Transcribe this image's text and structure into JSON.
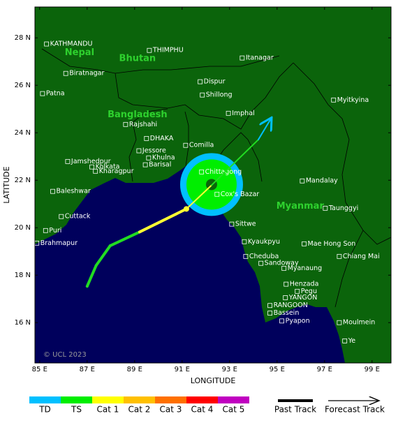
{
  "map": {
    "xlim": [
      84.8,
      99.8
    ],
    "ylim": [
      14.3,
      29.3
    ],
    "xticks": [
      {
        "value": 85,
        "label": "85 E"
      },
      {
        "value": 87,
        "label": "87 E"
      },
      {
        "value": 89,
        "label": "89 E"
      },
      {
        "value": 91,
        "label": "91 E"
      },
      {
        "value": 93,
        "label": "93 E"
      },
      {
        "value": 95,
        "label": "95 E"
      },
      {
        "value": 97,
        "label": "97 E"
      },
      {
        "value": 99,
        "label": "99 E"
      }
    ],
    "yticks": [
      {
        "value": 16,
        "label": "16 N"
      },
      {
        "value": 18,
        "label": "18 N"
      },
      {
        "value": 20,
        "label": "20 N"
      },
      {
        "value": 22,
        "label": "22 N"
      },
      {
        "value": 24,
        "label": "24 N"
      },
      {
        "value": 26,
        "label": "26 N"
      },
      {
        "value": 28,
        "label": "28 N"
      }
    ],
    "xlabel": "LONGITUDE",
    "ylabel": "LATITUDE",
    "copyright": "© UCL 2023",
    "regions": [
      {
        "name": "Nepal",
        "lon": 86.68,
        "lat": 27.38
      },
      {
        "name": "Bhutan",
        "lon": 89.12,
        "lat": 27.12
      },
      {
        "name": "Bangladesh",
        "lon": 89.12,
        "lat": 24.76
      },
      {
        "name": "Myanmar",
        "lon": 95.97,
        "lat": 20.91
      }
    ],
    "cities": [
      {
        "name": "KATHMANDU",
        "lon": 85.29,
        "lat": 27.74
      },
      {
        "name": "THIMPHU",
        "lon": 89.62,
        "lat": 27.47
      },
      {
        "name": "Itanagar",
        "lon": 93.53,
        "lat": 27.15
      },
      {
        "name": "Biratnagar",
        "lon": 86.1,
        "lat": 26.5
      },
      {
        "name": "Dispur",
        "lon": 91.76,
        "lat": 26.15
      },
      {
        "name": "Patna",
        "lon": 85.12,
        "lat": 25.65
      },
      {
        "name": "Shillong",
        "lon": 91.85,
        "lat": 25.59
      },
      {
        "name": "Myitkyina",
        "lon": 97.38,
        "lat": 25.38
      },
      {
        "name": "Imphal",
        "lon": 92.95,
        "lat": 24.82
      },
      {
        "name": "Rajshahi",
        "lon": 88.62,
        "lat": 24.35
      },
      {
        "name": "DHAKA",
        "lon": 89.5,
        "lat": 23.76
      },
      {
        "name": "Comilla",
        "lon": 91.15,
        "lat": 23.47
      },
      {
        "name": "Jessore",
        "lon": 89.18,
        "lat": 23.24
      },
      {
        "name": "Jamshedpur",
        "lon": 86.18,
        "lat": 22.79
      },
      {
        "name": "Khulna",
        "lon": 89.59,
        "lat": 22.94
      },
      {
        "name": "Kolkata",
        "lon": 87.2,
        "lat": 22.56
      },
      {
        "name": "Barisal",
        "lon": 89.45,
        "lat": 22.65
      },
      {
        "name": "Chittagong",
        "lon": 91.82,
        "lat": 22.35
      },
      {
        "name": "Kharagpur",
        "lon": 87.35,
        "lat": 22.38
      },
      {
        "name": "Mandalay",
        "lon": 96.06,
        "lat": 21.97
      },
      {
        "name": "Cox's Bazar",
        "lon": 92.47,
        "lat": 21.41
      },
      {
        "name": "Baleshwar",
        "lon": 85.55,
        "lat": 21.53
      },
      {
        "name": "Taunggyi",
        "lon": 97.03,
        "lat": 20.82
      },
      {
        "name": "Cuttack",
        "lon": 85.91,
        "lat": 20.47
      },
      {
        "name": "Sittwe",
        "lon": 93.09,
        "lat": 20.15
      },
      {
        "name": "Puri",
        "lon": 85.25,
        "lat": 19.88
      },
      {
        "name": "Kyaukpyu",
        "lon": 93.62,
        "lat": 19.41
      },
      {
        "name": "Mae Hong Son",
        "lon": 96.14,
        "lat": 19.32
      },
      {
        "name": "Brahmapur",
        "lon": 84.88,
        "lat": 19.35
      },
      {
        "name": "Cheduba",
        "lon": 93.68,
        "lat": 18.79
      },
      {
        "name": "Chiang Mai",
        "lon": 97.62,
        "lat": 18.79
      },
      {
        "name": "Sandoway",
        "lon": 94.32,
        "lat": 18.5
      },
      {
        "name": "Myanaung",
        "lon": 95.29,
        "lat": 18.29
      },
      {
        "name": "Henzada",
        "lon": 95.38,
        "lat": 17.62
      },
      {
        "name": "Pegu",
        "lon": 95.85,
        "lat": 17.32
      },
      {
        "name": "YANGON",
        "lon": 95.35,
        "lat": 17.05
      },
      {
        "name": "RANGOON",
        "lon": 94.7,
        "lat": 16.72
      },
      {
        "name": "Bassein",
        "lon": 94.7,
        "lat": 16.4
      },
      {
        "name": "Pyapon",
        "lon": 95.2,
        "lat": 16.07
      },
      {
        "name": "Moulmein",
        "lon": 97.62,
        "lat": 16.0
      },
      {
        "name": "Ye",
        "lon": 97.85,
        "lat": 15.23
      }
    ],
    "storm": {
      "lon": 92.24,
      "lat": 21.82
    },
    "past_track": [
      {
        "lon": 87.0,
        "lat": 17.53,
        "color": "#22dd22"
      },
      {
        "lon": 87.38,
        "lat": 18.41,
        "color": "#22dd22"
      },
      {
        "lon": 87.97,
        "lat": 19.24,
        "color": "#22dd22"
      },
      {
        "lon": 89.21,
        "lat": 19.82,
        "color": "#ffff33"
      },
      {
        "lon": 91.18,
        "lat": 20.79,
        "color": "#ffff33"
      }
    ],
    "forecast_track": [
      {
        "lon": 91.18,
        "lat": 20.79,
        "color": "#ffff33"
      },
      {
        "lon": 92.24,
        "lat": 21.79,
        "color": "#22dd22"
      },
      {
        "lon": 94.21,
        "lat": 23.71,
        "color": "#00c0ff"
      },
      {
        "lon": 94.74,
        "lat": 24.59,
        "color": "#00c0ff"
      }
    ],
    "legend": {
      "categories": [
        {
          "name": "TD",
          "color": "#00c0ff"
        },
        {
          "name": "TS",
          "color": "#00ee00"
        },
        {
          "name": "Cat 1",
          "color": "#ffff00"
        },
        {
          "name": "Cat 2",
          "color": "#ffc000"
        },
        {
          "name": "Cat 3",
          "color": "#ff7000"
        },
        {
          "name": "Cat 4",
          "color": "#ff0000"
        },
        {
          "name": "Cat 5",
          "color": "#c000c0"
        }
      ],
      "past": "Past Track",
      "forecast": "Forecast Track"
    }
  }
}
